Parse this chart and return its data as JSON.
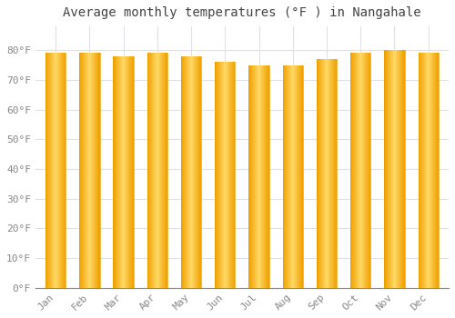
{
  "title": "Average monthly temperatures (°F ) in Nangahale",
  "months": [
    "Jan",
    "Feb",
    "Mar",
    "Apr",
    "May",
    "Jun",
    "Jul",
    "Aug",
    "Sep",
    "Oct",
    "Nov",
    "Dec"
  ],
  "values": [
    79,
    79,
    78,
    79,
    78,
    76,
    75,
    75,
    77,
    79,
    80,
    79
  ],
  "bar_color_center": "#FFD966",
  "bar_color_edge": "#F0A000",
  "background_color": "#FFFFFF",
  "grid_color": "#E0E0E8",
  "ylabel_ticks": [
    0,
    10,
    20,
    30,
    40,
    50,
    60,
    70,
    80
  ],
  "ylim": [
    0,
    88
  ],
  "title_fontsize": 10,
  "tick_fontsize": 8,
  "text_color": "#888888",
  "bar_width": 0.6
}
